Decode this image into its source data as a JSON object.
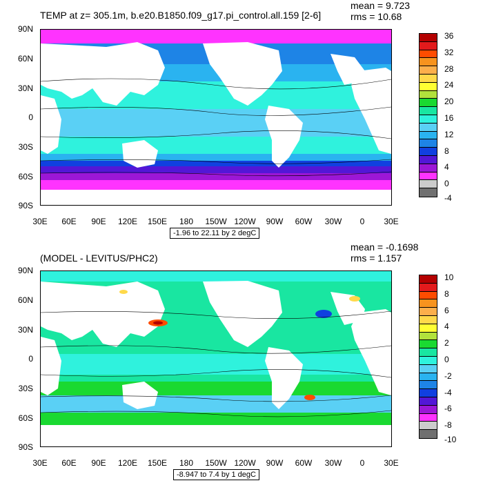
{
  "top": {
    "title": "TEMP at z= 305.1m, b.e20.B1850.f09_g17.pi_control.all.159 [2-6]",
    "mean": "mean = 9.723",
    "rms": "rms = 10.68",
    "range_note": "-1.96 to 22.11 by 2 degC",
    "colorbar_labels": [
      "36",
      "32",
      "28",
      "24",
      "20",
      "16",
      "12",
      "8",
      "4",
      "0",
      "-4"
    ],
    "colorbar_colors": [
      "#b40000",
      "#e31a1c",
      "#ff4c00",
      "#f7931e",
      "#fcaf4b",
      "#ffd94a",
      "#ffff33",
      "#b2e23c",
      "#1ad931",
      "#19e6a1",
      "#2ff2dd",
      "#5ad0f5",
      "#2ab3f0",
      "#1e84e6",
      "#1040e0",
      "#5317d6",
      "#9c17d6",
      "#ff33ff",
      "#cccccc",
      "#707070"
    ]
  },
  "bottom": {
    "title": "(MODEL - LEVITUS/PHC2)",
    "mean": "mean = -0.1698",
    "rms": "rms = 1.157",
    "range_note": "-8.947 to 7.4 by 1 degC",
    "colorbar_labels": [
      "10",
      "8",
      "6",
      "4",
      "2",
      "0",
      "-2",
      "-4",
      "-6",
      "-8",
      "-10"
    ],
    "colorbar_colors": [
      "#b40000",
      "#e31a1c",
      "#ff4c00",
      "#f7931e",
      "#fcaf4b",
      "#ffd94a",
      "#ffff33",
      "#b2e23c",
      "#1ad931",
      "#19e6a1",
      "#2ff2dd",
      "#5ad0f5",
      "#2ab3f0",
      "#1e84e6",
      "#1040e0",
      "#5317d6",
      "#9c17d6",
      "#ff33ff",
      "#cccccc",
      "#707070"
    ]
  },
  "axes": {
    "lat_labels": [
      "90N",
      "60N",
      "30N",
      "0",
      "30S",
      "60S",
      "90S"
    ],
    "lon_labels": [
      "30E",
      "60E",
      "90E",
      "120E",
      "150E",
      "180",
      "150W",
      "120W",
      "90W",
      "60W",
      "30W",
      "0",
      "30E"
    ]
  }
}
